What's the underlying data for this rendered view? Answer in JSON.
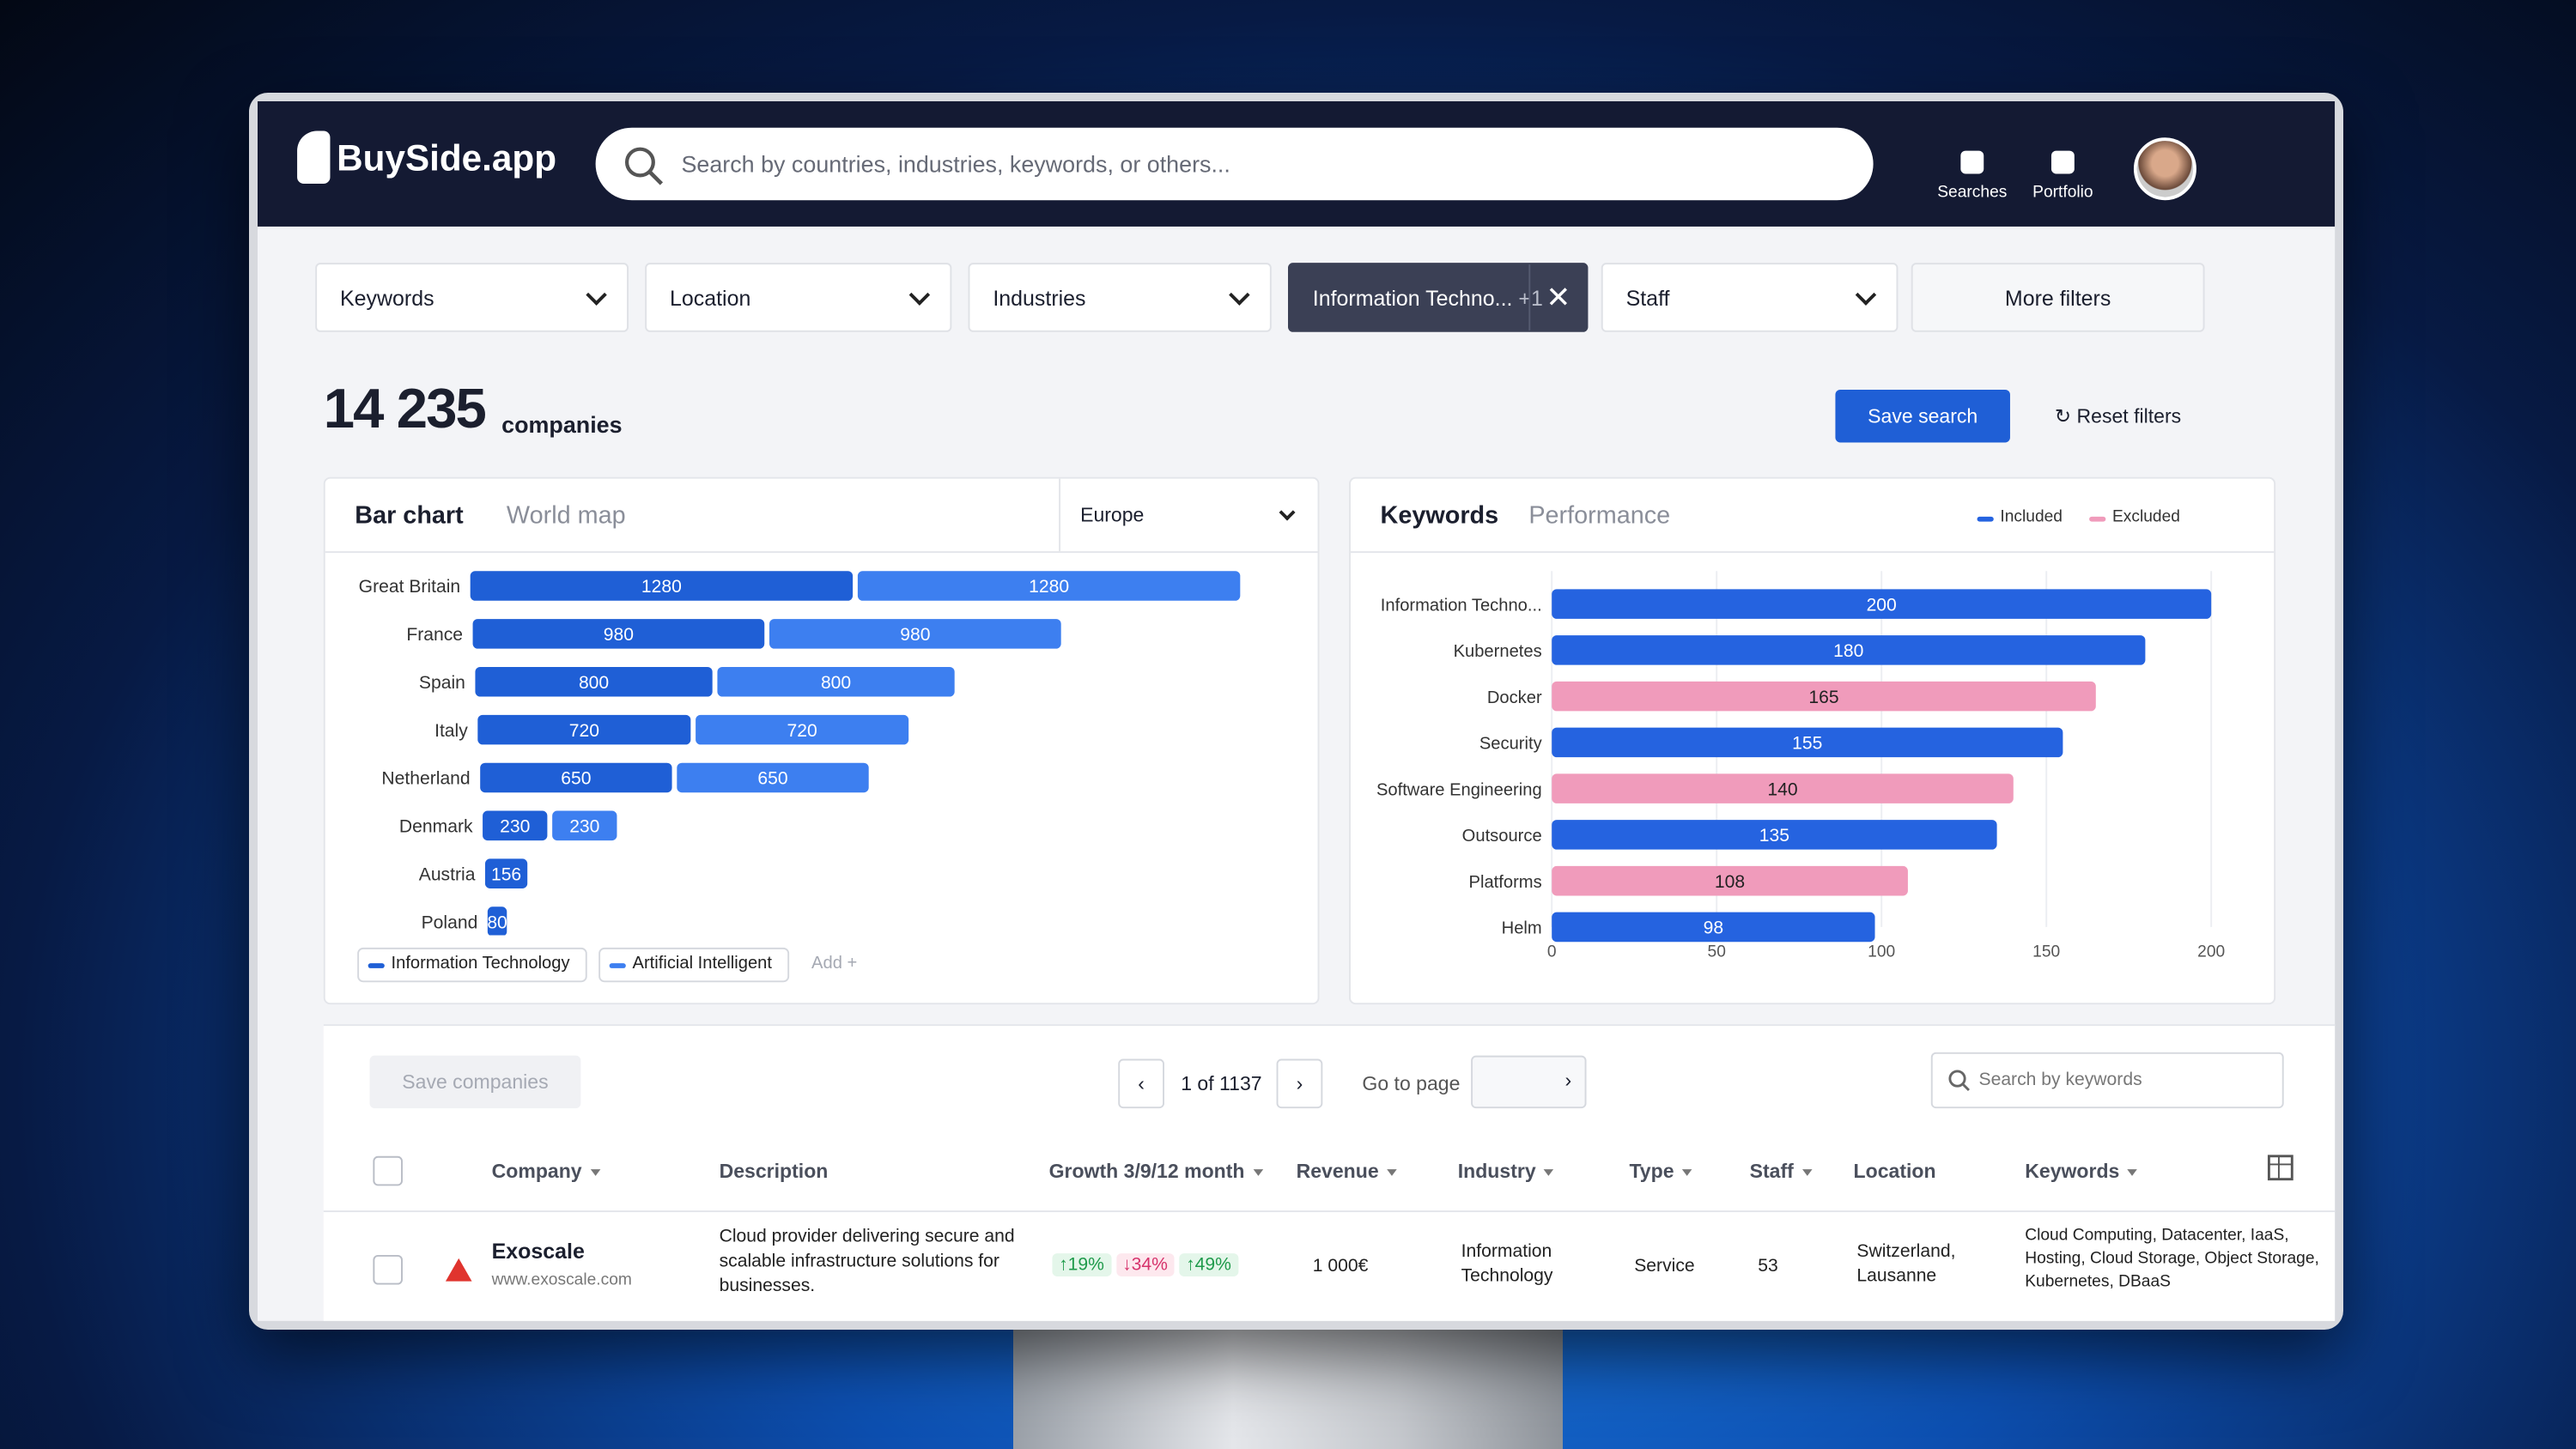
{
  "header": {
    "logo": "BuySide.app",
    "search_placeholder": "Search by countries, industries, keywords, or others...",
    "nav": [
      "Searches",
      "Portfolio"
    ]
  },
  "filters": {
    "items": [
      "Keywords",
      "Location",
      "Industries"
    ],
    "active": {
      "label": "Information Techno...",
      "extra": "+1"
    },
    "staff": "Staff",
    "more": "More filters"
  },
  "summary": {
    "count": "14 235",
    "unit": "companies",
    "save": "Save search",
    "reset": "Reset filters"
  },
  "bar_chart": {
    "type": "bar",
    "tabs": [
      "Bar chart",
      "World map"
    ],
    "region": "Europe",
    "categories": [
      "Great Britain",
      "France",
      "Spain",
      "Italy",
      "Netherland",
      "Denmark",
      "Austria",
      "Poland"
    ],
    "series": [
      {
        "name": "Information Technology",
        "color": "#1f5fd6",
        "values": [
          1280,
          980,
          800,
          720,
          650,
          230,
          156,
          80
        ]
      },
      {
        "name": "Artificial Intelligent",
        "color": "#3d7ff0",
        "values": [
          1280,
          980,
          800,
          720,
          650,
          230,
          null,
          null
        ]
      }
    ],
    "add": "Add +"
  },
  "keywords_chart": {
    "type": "bar",
    "tabs": [
      "Keywords",
      "Performance"
    ],
    "legend": [
      {
        "name": "Included",
        "color": "#2563e0"
      },
      {
        "name": "Excluded",
        "color": "#f09bbb"
      }
    ],
    "categories": [
      "Information Techno...",
      "Kubernetes",
      "Docker",
      "Security",
      "Software Engineering",
      "Outsource",
      "Platforms",
      "Helm"
    ],
    "values": [
      200,
      180,
      165,
      155,
      140,
      135,
      108,
      98
    ],
    "colors": [
      "#2563e0",
      "#2563e0",
      "#f09bbb",
      "#2563e0",
      "#f09bbb",
      "#2563e0",
      "#f09bbb",
      "#2563e0"
    ],
    "xlim": [
      0,
      200
    ],
    "xticks": [
      0,
      50,
      100,
      150,
      200
    ],
    "grid": true
  },
  "pagination": {
    "save": "Save companies",
    "page": "1 of 1137",
    "goto": "Go to page",
    "search": "Search by keywords"
  },
  "table": {
    "headers": [
      "Company",
      "Description",
      "Growth 3/9/12 month",
      "Revenue",
      "Industry",
      "Type",
      "Staff",
      "Location",
      "Keywords"
    ],
    "rows": [
      {
        "company": "Exoscale",
        "url": "www.exoscale.com",
        "description": "Cloud provider delivering secure and scalable infrastructure solutions for businesses.",
        "growth": [
          "19%",
          "34%",
          "49%"
        ],
        "revenue": "1 000€",
        "industry": "Information Technology",
        "type": "Service",
        "staff": "53",
        "location": "Switzerland, Lausanne",
        "keywords": "Cloud Computing, Datacenter, IaaS, Hosting, Cloud Storage, Object Storage, Kubernetes, DBaaS"
      }
    ]
  }
}
